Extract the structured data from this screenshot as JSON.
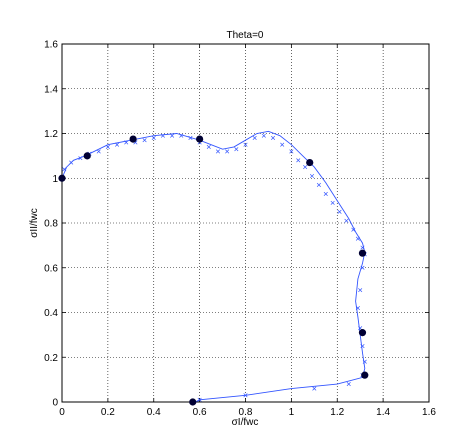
{
  "chart_data": {
    "type": "line",
    "title": "Theta=0",
    "xlabel": "σI/fwc",
    "ylabel": "σII/fwc",
    "xlim": [
      0,
      1.6
    ],
    "ylim": [
      0,
      1.6
    ],
    "xticks": [
      0,
      0.2,
      0.4,
      0.6,
      0.8,
      1,
      1.2,
      1.4,
      1.6
    ],
    "yticks": [
      0,
      0.2,
      0.4,
      0.6,
      0.8,
      1,
      1.2,
      1.4,
      1.6
    ],
    "xtick_labels": [
      "0",
      "0.2",
      "0.4",
      "0.6",
      "0.8",
      "1",
      "1.2",
      "1.4",
      "1.6"
    ],
    "ytick_labels": [
      "0",
      "0.2",
      "0.4",
      "0.6",
      "0.8",
      "1",
      "1.2",
      "1.4",
      "1.6"
    ],
    "grid": true,
    "line_color": "#3355ff",
    "marker_color": "#000033",
    "series": [
      {
        "style": "solid-line",
        "x": [
          0,
          0.02,
          0.05,
          0.1,
          0.2,
          0.3,
          0.4,
          0.5,
          0.6,
          0.65,
          0.7,
          0.75,
          0.8,
          0.85,
          0.9,
          0.95,
          1.0,
          1.05,
          1.1,
          1.15,
          1.2,
          1.25,
          1.28,
          1.31,
          1.32,
          1.31,
          1.29,
          1.28,
          1.29,
          1.3,
          1.31,
          1.32,
          1.31,
          1.2,
          1.0,
          0.8,
          0.6,
          0.58
        ],
        "y": [
          1.0,
          1.05,
          1.08,
          1.1,
          1.15,
          1.17,
          1.19,
          1.2,
          1.17,
          1.15,
          1.13,
          1.14,
          1.17,
          1.2,
          1.21,
          1.19,
          1.15,
          1.1,
          1.05,
          0.98,
          0.9,
          0.82,
          0.76,
          0.71,
          0.67,
          0.62,
          0.55,
          0.45,
          0.38,
          0.3,
          0.22,
          0.15,
          0.11,
          0.08,
          0.06,
          0.03,
          0.01,
          0.0
        ]
      },
      {
        "style": "x-markers",
        "x": [
          0.01,
          0.04,
          0.08,
          0.12,
          0.16,
          0.2,
          0.24,
          0.28,
          0.32,
          0.36,
          0.4,
          0.44,
          0.48,
          0.52,
          0.56,
          0.6,
          0.64,
          0.68,
          0.72,
          0.76,
          0.8,
          0.84,
          0.88,
          0.92,
          0.96,
          1.0,
          1.03,
          1.06,
          1.09,
          1.12,
          1.15,
          1.18,
          1.21,
          1.24,
          1.27,
          1.29,
          1.31,
          1.32,
          1.31,
          1.3,
          1.29,
          1.3,
          1.31,
          1.32,
          1.31,
          1.25,
          1.1,
          0.8,
          0.6
        ],
        "y": [
          1.04,
          1.07,
          1.09,
          1.11,
          1.12,
          1.14,
          1.15,
          1.16,
          1.16,
          1.17,
          1.18,
          1.19,
          1.19,
          1.19,
          1.18,
          1.16,
          1.14,
          1.12,
          1.12,
          1.13,
          1.15,
          1.18,
          1.19,
          1.18,
          1.15,
          1.12,
          1.08,
          1.05,
          1.01,
          0.97,
          0.93,
          0.89,
          0.85,
          0.81,
          0.77,
          0.73,
          0.69,
          0.66,
          0.6,
          0.5,
          0.42,
          0.33,
          0.25,
          0.18,
          0.12,
          0.08,
          0.06,
          0.03,
          0.01
        ]
      },
      {
        "style": "filled-circles",
        "x": [
          0,
          0.11,
          0.31,
          0.6,
          1.08,
          1.31,
          1.31,
          1.32,
          0.57
        ],
        "y": [
          1.0,
          1.1,
          1.175,
          1.175,
          1.07,
          0.665,
          0.31,
          0.12,
          0.0
        ]
      }
    ]
  }
}
